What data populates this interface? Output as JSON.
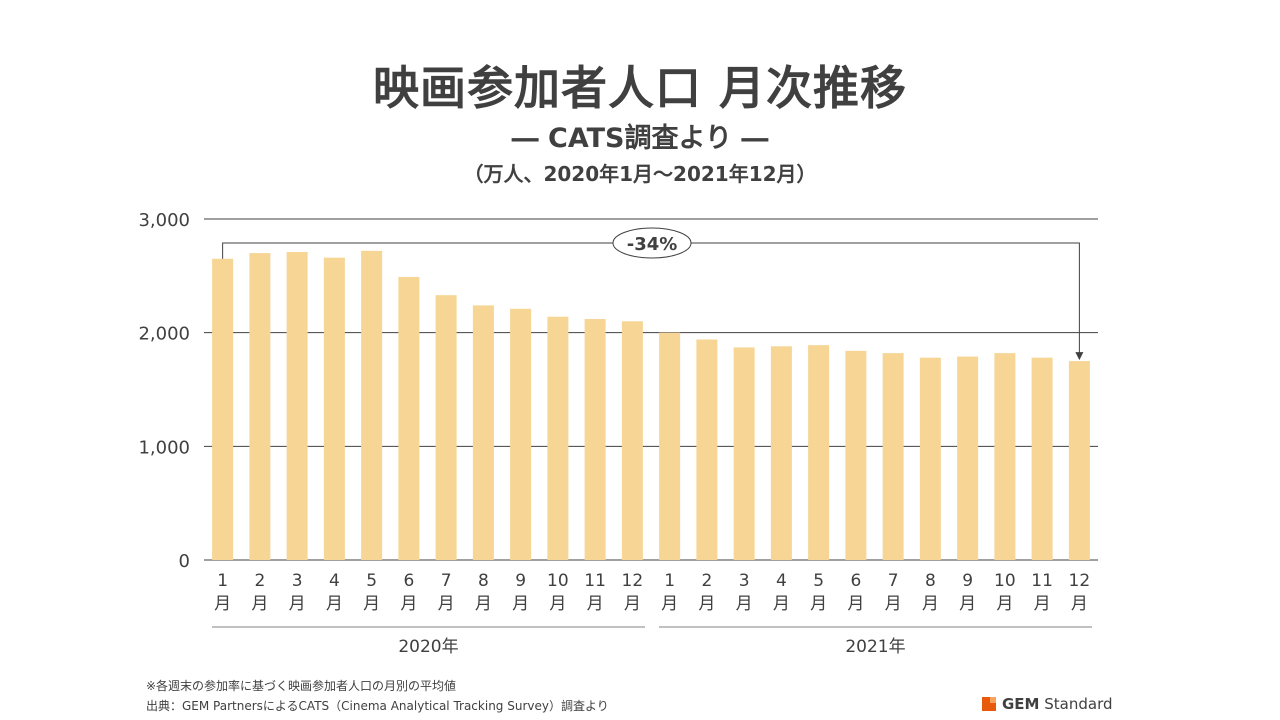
{
  "header": {
    "title": "映画参加者人口 月次推移",
    "subtitle": "― CATS調査より ―",
    "unit": "（万人、2020年1月～2021年12月）"
  },
  "chart_data": {
    "type": "bar",
    "categories": [
      "1月",
      "2月",
      "3月",
      "4月",
      "5月",
      "6月",
      "7月",
      "8月",
      "9月",
      "10月",
      "11月",
      "12月",
      "1月",
      "2月",
      "3月",
      "4月",
      "5月",
      "6月",
      "7月",
      "8月",
      "9月",
      "10月",
      "11月",
      "12月"
    ],
    "tick_labels": [
      [
        "1",
        "月"
      ],
      [
        "2",
        "月"
      ],
      [
        "3",
        "月"
      ],
      [
        "4",
        "月"
      ],
      [
        "5",
        "月"
      ],
      [
        "6",
        "月"
      ],
      [
        "7",
        "月"
      ],
      [
        "8",
        "月"
      ],
      [
        "9",
        "月"
      ],
      [
        "10",
        "月"
      ],
      [
        "11",
        "月"
      ],
      [
        "12",
        "月"
      ],
      [
        "1",
        "月"
      ],
      [
        "2",
        "月"
      ],
      [
        "3",
        "月"
      ],
      [
        "4",
        "月"
      ],
      [
        "5",
        "月"
      ],
      [
        "6",
        "月"
      ],
      [
        "7",
        "月"
      ],
      [
        "8",
        "月"
      ],
      [
        "9",
        "月"
      ],
      [
        "10",
        "月"
      ],
      [
        "11",
        "月"
      ],
      [
        "12",
        "月"
      ]
    ],
    "values": [
      2650,
      2700,
      2710,
      2660,
      2720,
      2490,
      2330,
      2240,
      2210,
      2140,
      2120,
      2100,
      2000,
      1940,
      1870,
      1880,
      1890,
      1840,
      1820,
      1780,
      1790,
      1820,
      1780,
      1750
    ],
    "groups": [
      {
        "label": "2020年",
        "from": 0,
        "to": 11
      },
      {
        "label": "2021年",
        "from": 12,
        "to": 23
      }
    ],
    "ylim": [
      0,
      3000
    ],
    "yticks": [
      0,
      1000,
      2000,
      3000
    ],
    "ytick_labels": [
      "0",
      "1,000",
      "2,000",
      "3,000"
    ],
    "grid": true,
    "annotation": {
      "text": "-34%",
      "from": 0,
      "to": 23
    },
    "bar_color": "#f6d595",
    "grid_color": "#404040"
  },
  "footnotes": {
    "note": "※各週末の参加率に基づく映画参加者人口の月別の平均値",
    "source": "出典：GEM PartnersによるCATS（Cinema Analytical Tracking Survey）調査より"
  },
  "logo": {
    "bold": "GEM",
    "rest": " Standard",
    "colors": [
      "#e8590c",
      "#f7a35c"
    ]
  }
}
